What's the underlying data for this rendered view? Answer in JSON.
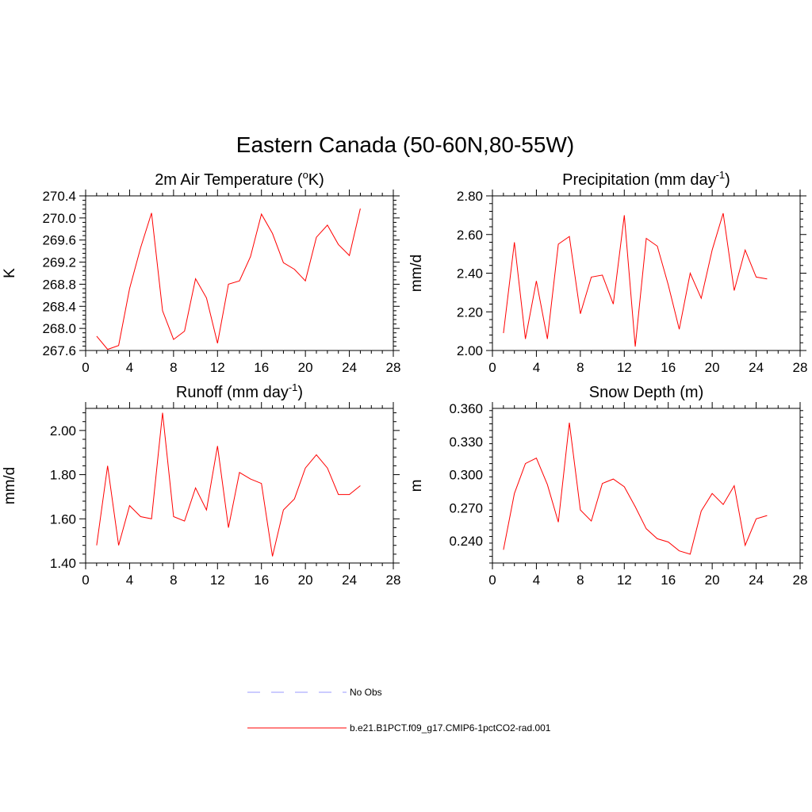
{
  "figure": {
    "title": "Eastern Canada (50-60N,80-55W)"
  },
  "legend": {
    "items": [
      {
        "label": "No Obs",
        "color": "#9999ff",
        "dash": true
      },
      {
        "label": "b.e21.B1PCT.f09_g17.CMIP6-1pctCO2-rad.001",
        "color": "#ff0000",
        "dash": false
      }
    ]
  },
  "chart_data": [
    {
      "type": "line",
      "title": "2m Air Temperature (",
      "title_sup": "o",
      "title_end": "K)",
      "ylabel": "K",
      "xlim": [
        0,
        28
      ],
      "ylim": [
        267.6,
        270.4
      ],
      "xticks": [
        "0",
        "4",
        "8",
        "12",
        "16",
        "20",
        "24",
        "28"
      ],
      "yticks": [
        "267.6",
        "268.0",
        "268.4",
        "268.8",
        "269.2",
        "269.6",
        "270.0",
        "270.4"
      ],
      "grid": false,
      "series": [
        {
          "color": "#ff0000",
          "x": [
            1,
            2,
            3,
            4,
            5,
            6,
            7,
            8,
            9,
            10,
            11,
            12,
            13,
            14,
            15,
            16,
            17,
            18,
            19,
            20,
            21,
            22,
            23,
            24,
            25
          ],
          "y": [
            267.86,
            267.62,
            267.69,
            268.72,
            269.46,
            270.09,
            268.32,
            267.8,
            267.95,
            268.9,
            268.55,
            267.73,
            268.8,
            268.86,
            269.3,
            270.07,
            269.72,
            269.19,
            269.07,
            268.86,
            269.65,
            269.87,
            269.52,
            269.32,
            270.17
          ]
        }
      ]
    },
    {
      "type": "line",
      "title": "Precipitation (mm day",
      "title_sup": "-1",
      "title_end": ")",
      "ylabel": "mm/d",
      "xlim": [
        0,
        28
      ],
      "ylim": [
        2.0,
        2.8
      ],
      "xticks": [
        "0",
        "4",
        "8",
        "12",
        "16",
        "20",
        "24",
        "28"
      ],
      "yticks": [
        "2.00",
        "2.20",
        "2.40",
        "2.60",
        "2.80"
      ],
      "grid": false,
      "series": [
        {
          "color": "#ff0000",
          "x": [
            1,
            2,
            3,
            4,
            5,
            6,
            7,
            8,
            9,
            10,
            11,
            12,
            13,
            14,
            15,
            16,
            17,
            18,
            19,
            20,
            21,
            22,
            23,
            24,
            25
          ],
          "y": [
            2.09,
            2.56,
            2.06,
            2.36,
            2.06,
            2.55,
            2.59,
            2.19,
            2.38,
            2.39,
            2.24,
            2.7,
            2.02,
            2.58,
            2.54,
            2.34,
            2.11,
            2.4,
            2.27,
            2.52,
            2.71,
            2.31,
            2.52,
            2.38,
            2.37
          ]
        }
      ]
    },
    {
      "type": "line",
      "title": "Runoff (mm day",
      "title_sup": "-1",
      "title_end": ")",
      "ylabel": "mm/d",
      "xlim": [
        0,
        28
      ],
      "ylim": [
        1.4,
        2.1
      ],
      "xticks": [
        "0",
        "4",
        "8",
        "12",
        "16",
        "20",
        "24",
        "28"
      ],
      "yticks": [
        "1.40",
        "1.60",
        "1.80",
        "2.00"
      ],
      "grid": false,
      "series": [
        {
          "color": "#ff0000",
          "x": [
            1,
            2,
            3,
            4,
            5,
            6,
            7,
            8,
            9,
            10,
            11,
            12,
            13,
            14,
            15,
            16,
            17,
            18,
            19,
            20,
            21,
            22,
            23,
            24,
            25
          ],
          "y": [
            1.48,
            1.84,
            1.48,
            1.66,
            1.61,
            1.6,
            2.08,
            1.61,
            1.59,
            1.74,
            1.64,
            1.93,
            1.56,
            1.81,
            1.78,
            1.76,
            1.43,
            1.64,
            1.69,
            1.83,
            1.89,
            1.83,
            1.71,
            1.71,
            1.75
          ]
        }
      ]
    },
    {
      "type": "line",
      "title": "Snow Depth (m)",
      "title_sup": "",
      "title_end": "",
      "ylabel": "m",
      "xlim": [
        0,
        28
      ],
      "ylim": [
        0.22,
        0.36
      ],
      "xticks": [
        "0",
        "4",
        "8",
        "12",
        "16",
        "20",
        "24",
        "28"
      ],
      "yticks": [
        "0.240",
        "0.270",
        "0.300",
        "0.330",
        "0.360"
      ],
      "grid": false,
      "series": [
        {
          "color": "#ff0000",
          "x": [
            1,
            2,
            3,
            4,
            5,
            6,
            7,
            8,
            9,
            10,
            11,
            12,
            13,
            14,
            15,
            16,
            17,
            18,
            19,
            20,
            21,
            22,
            23,
            24,
            25
          ],
          "y": [
            0.232,
            0.283,
            0.31,
            0.315,
            0.291,
            0.257,
            0.347,
            0.268,
            0.258,
            0.292,
            0.296,
            0.289,
            0.271,
            0.251,
            0.242,
            0.239,
            0.231,
            0.228,
            0.267,
            0.283,
            0.273,
            0.29,
            0.236,
            0.26,
            0.263
          ]
        }
      ]
    }
  ]
}
